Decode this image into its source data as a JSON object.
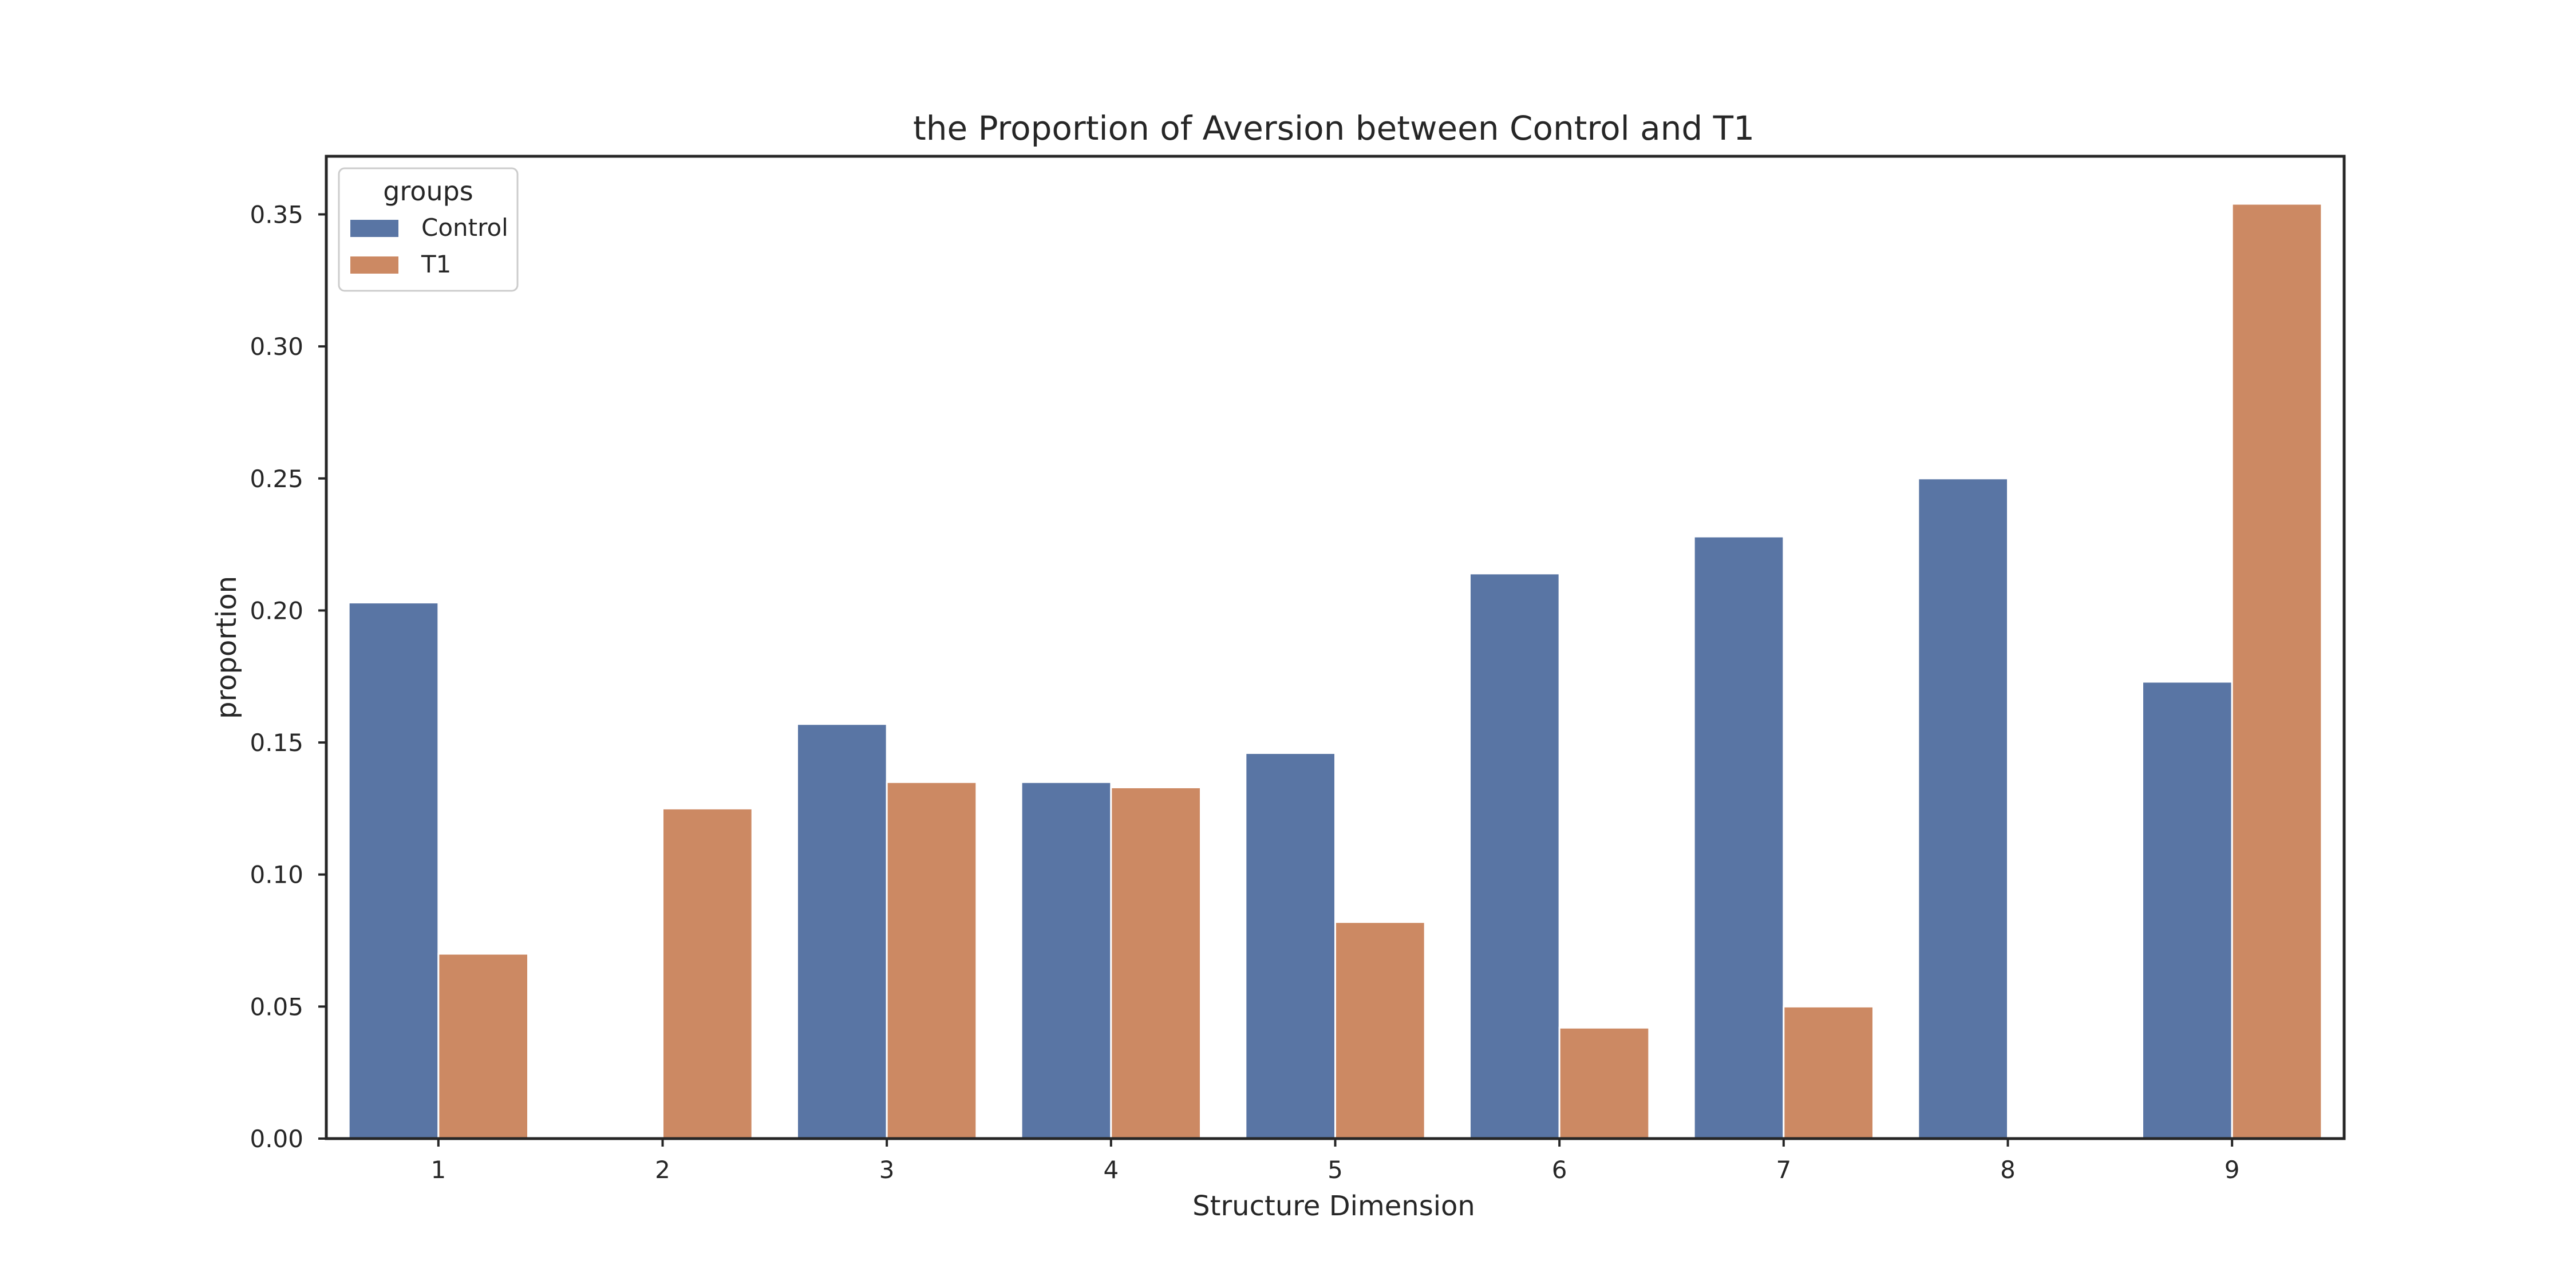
{
  "chart_data": {
    "type": "bar",
    "title": "the Proportion of Aversion between Control and T1",
    "xlabel": "Structure Dimension",
    "ylabel": "proportion",
    "categories": [
      "1",
      "2",
      "3",
      "4",
      "5",
      "6",
      "7",
      "8",
      "9"
    ],
    "series": [
      {
        "name": "Control",
        "color": "#5975a4",
        "values": [
          0.203,
          0.0,
          0.157,
          0.135,
          0.146,
          0.214,
          0.228,
          0.25,
          0.173
        ]
      },
      {
        "name": "T1",
        "color": "#cc8963",
        "values": [
          0.07,
          0.125,
          0.135,
          0.133,
          0.082,
          0.042,
          0.05,
          0.0,
          0.354
        ]
      }
    ],
    "ylim": [
      0,
      0.372
    ],
    "yticks": [
      "0.00",
      "0.05",
      "0.10",
      "0.15",
      "0.20",
      "0.25",
      "0.30",
      "0.35"
    ],
    "legend": {
      "title": "groups",
      "position": "top-left"
    },
    "grid": false
  }
}
